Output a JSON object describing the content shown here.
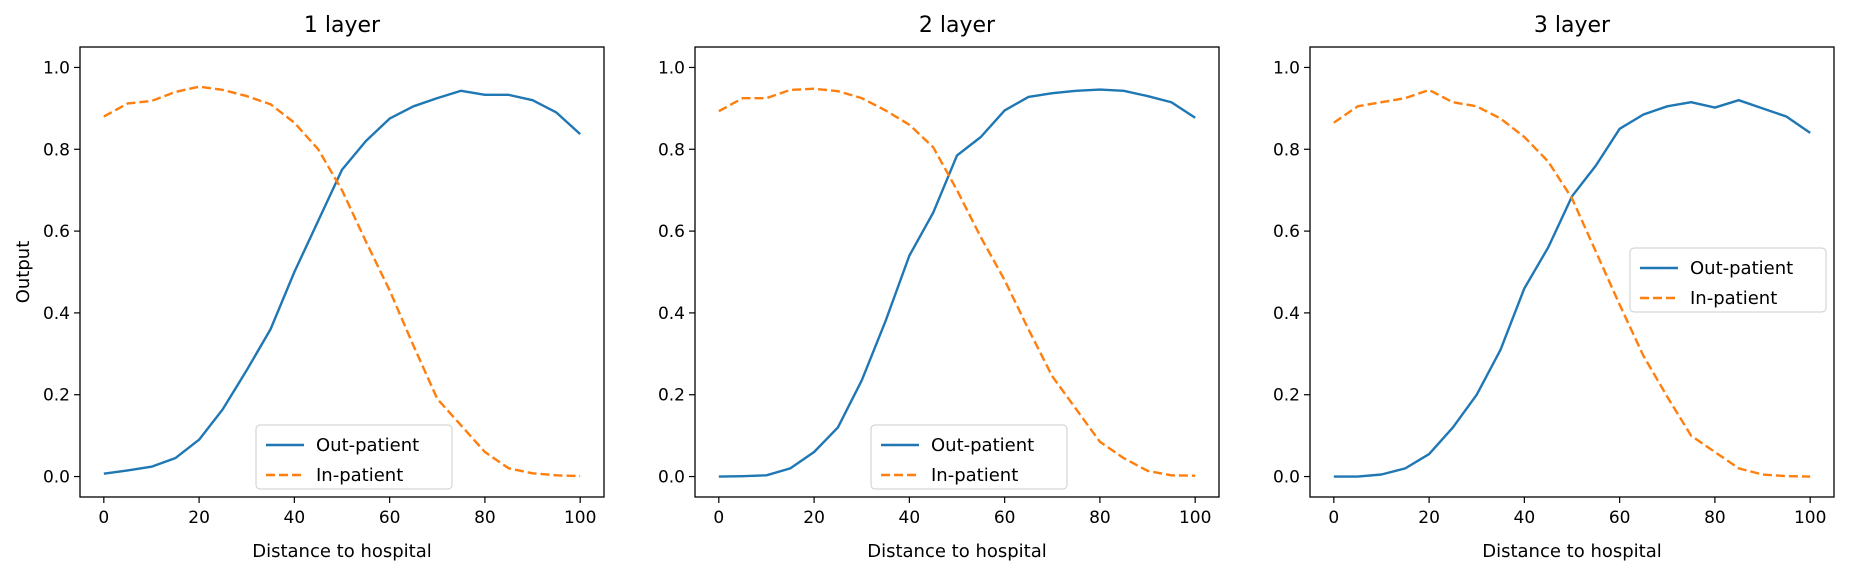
{
  "chart_data": [
    {
      "type": "line",
      "title": "1 layer",
      "xlabel": "Distance to hospital",
      "ylabel": "Output",
      "xlim": [
        -5,
        105
      ],
      "ylim": [
        -0.05,
        1.05
      ],
      "xticks": [
        0,
        20,
        40,
        60,
        80,
        100
      ],
      "yticks": [
        0.0,
        0.2,
        0.4,
        0.6,
        0.8,
        1.0
      ],
      "grid": false,
      "legend_position": "lower-center",
      "x": [
        0,
        5,
        10,
        15,
        20,
        25,
        30,
        35,
        40,
        45,
        50,
        55,
        60,
        65,
        70,
        75,
        80,
        85,
        90,
        95,
        100
      ],
      "series": [
        {
          "name": "Out-patient",
          "style": "solid",
          "color": "#1f77b4",
          "values": [
            0.007,
            0.015,
            0.024,
            0.045,
            0.09,
            0.165,
            0.26,
            0.36,
            0.5,
            0.625,
            0.75,
            0.82,
            0.875,
            0.905,
            0.925,
            0.943,
            0.933,
            0.933,
            0.92,
            0.89,
            0.837
          ]
        },
        {
          "name": "In-patient",
          "style": "dashed",
          "color": "#ff7f0e",
          "values": [
            0.88,
            0.912,
            0.918,
            0.94,
            0.953,
            0.945,
            0.93,
            0.91,
            0.865,
            0.8,
            0.7,
            0.575,
            0.455,
            0.32,
            0.19,
            0.125,
            0.06,
            0.02,
            0.008,
            0.003,
            0.001
          ]
        }
      ]
    },
    {
      "type": "line",
      "title": "2 layer",
      "xlabel": "Distance to hospital",
      "ylabel": "",
      "xlim": [
        -5,
        105
      ],
      "ylim": [
        -0.05,
        1.05
      ],
      "xticks": [
        0,
        20,
        40,
        60,
        80,
        100
      ],
      "yticks": [
        0.0,
        0.2,
        0.4,
        0.6,
        0.8,
        1.0
      ],
      "grid": false,
      "legend_position": "lower-center",
      "x": [
        0,
        5,
        10,
        15,
        20,
        25,
        30,
        35,
        40,
        45,
        50,
        55,
        60,
        65,
        70,
        75,
        80,
        85,
        90,
        95,
        100
      ],
      "series": [
        {
          "name": "Out-patient",
          "style": "solid",
          "color": "#1f77b4",
          "values": [
            0.0,
            0.001,
            0.003,
            0.02,
            0.06,
            0.12,
            0.235,
            0.38,
            0.54,
            0.645,
            0.785,
            0.83,
            0.895,
            0.928,
            0.937,
            0.943,
            0.946,
            0.943,
            0.93,
            0.915,
            0.877
          ]
        },
        {
          "name": "In-patient",
          "style": "dashed",
          "color": "#ff7f0e",
          "values": [
            0.893,
            0.925,
            0.925,
            0.945,
            0.948,
            0.942,
            0.925,
            0.895,
            0.86,
            0.805,
            0.7,
            0.585,
            0.48,
            0.36,
            0.245,
            0.165,
            0.085,
            0.045,
            0.014,
            0.003,
            0.002
          ]
        }
      ]
    },
    {
      "type": "line",
      "title": "3 layer",
      "xlabel": "Distance to hospital",
      "ylabel": "",
      "xlim": [
        -5,
        105
      ],
      "ylim": [
        -0.05,
        1.05
      ],
      "xticks": [
        0,
        20,
        40,
        60,
        80,
        100
      ],
      "yticks": [
        0.0,
        0.2,
        0.4,
        0.6,
        0.8,
        1.0
      ],
      "grid": false,
      "legend_position": "center-right",
      "x": [
        0,
        5,
        10,
        15,
        20,
        25,
        30,
        35,
        40,
        45,
        50,
        55,
        60,
        65,
        70,
        75,
        80,
        85,
        90,
        95,
        100
      ],
      "series": [
        {
          "name": "Out-patient",
          "style": "solid",
          "color": "#1f77b4",
          "values": [
            0.0,
            0.0,
            0.005,
            0.02,
            0.055,
            0.12,
            0.2,
            0.31,
            0.46,
            0.56,
            0.685,
            0.76,
            0.85,
            0.885,
            0.905,
            0.915,
            0.902,
            0.92,
            0.9,
            0.88,
            0.84
          ]
        },
        {
          "name": "In-patient",
          "style": "dashed",
          "color": "#ff7f0e",
          "values": [
            0.865,
            0.905,
            0.915,
            0.925,
            0.945,
            0.915,
            0.905,
            0.875,
            0.83,
            0.77,
            0.68,
            0.55,
            0.42,
            0.295,
            0.195,
            0.1,
            0.06,
            0.02,
            0.005,
            0.001,
            0.0
          ]
        }
      ]
    }
  ]
}
